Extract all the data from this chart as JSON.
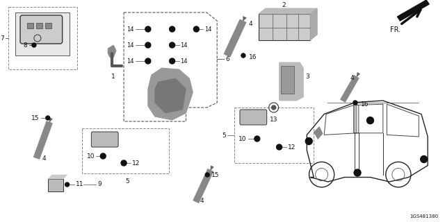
{
  "bg_color": "#ffffff",
  "diagram_code": "1GS481380",
  "fr_label": "FR.",
  "label_fs": 6.5,
  "line_color": "#222222",
  "part_color": "#333333",
  "fill_color": "#aaaaaa",
  "dark_fill": "#555555"
}
